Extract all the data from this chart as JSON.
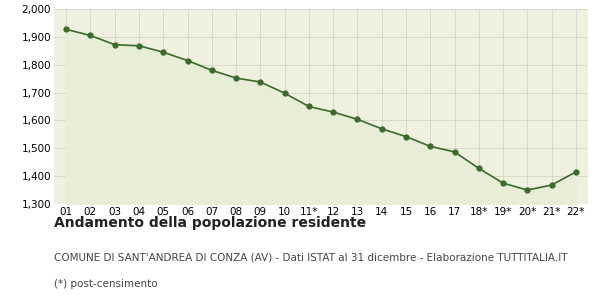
{
  "x_labels": [
    "01",
    "02",
    "03",
    "04",
    "05",
    "06",
    "07",
    "08",
    "09",
    "10",
    "11*",
    "12",
    "13",
    "14",
    "15",
    "16",
    "17",
    "18*",
    "19*",
    "20*",
    "21*",
    "22*"
  ],
  "y_values": [
    1927,
    1905,
    1872,
    1868,
    1845,
    1815,
    1780,
    1752,
    1738,
    1698,
    1650,
    1630,
    1604,
    1570,
    1542,
    1507,
    1487,
    1428,
    1375,
    1350,
    1368,
    1415
  ],
  "line_color": "#3a6b2a",
  "fill_color": "#e8edd8",
  "marker_color": "#3a6b2a",
  "bg_color": "#f5f5f0",
  "plot_bg_color": "#f0f0e0",
  "grid_color": "#d0d0c0",
  "ylim": [
    1300,
    2000
  ],
  "yticks": [
    1300,
    1400,
    1500,
    1600,
    1700,
    1800,
    1900,
    2000
  ],
  "title": "Andamento della popolazione residente",
  "subtitle": "COMUNE DI SANT'ANDREA DI CONZA (AV) - Dati ISTAT al 31 dicembre - Elaborazione TUTTITALIA.IT",
  "footnote": "(*) post-censimento",
  "title_fontsize": 10,
  "subtitle_fontsize": 7.5,
  "footnote_fontsize": 7.5,
  "tick_fontsize": 7.5
}
